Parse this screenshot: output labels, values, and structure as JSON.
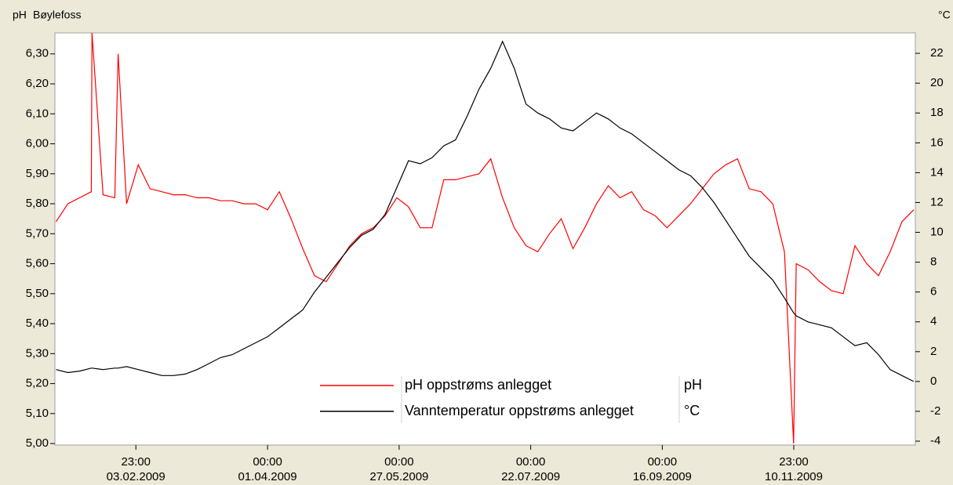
{
  "chart_data": {
    "type": "line",
    "title": "Bøylefoss",
    "ylabel": "pH",
    "y2label": "°C",
    "x": [
      0,
      5,
      10,
      15,
      15.3,
      20,
      25,
      26.4,
      30,
      35,
      40,
      45,
      50,
      55,
      60,
      65,
      70,
      75,
      80,
      85,
      90,
      95,
      100,
      105,
      110,
      115,
      120,
      125,
      130,
      135,
      140,
      145,
      150,
      155,
      160,
      165,
      170,
      175,
      180,
      185,
      190,
      195,
      200,
      205,
      210,
      215,
      220,
      225,
      230,
      235,
      240,
      245,
      250,
      255,
      260,
      265,
      270,
      275,
      280,
      285,
      290,
      295,
      300,
      305,
      310,
      313.9,
      315,
      320,
      325,
      330,
      335,
      340,
      345,
      350,
      355,
      360,
      365
    ],
    "series": [
      {
        "name": "pH oppstrøms anlegget",
        "unit": "pH",
        "color": "#ff0000",
        "values": [
          5.74,
          5.8,
          5.82,
          5.84,
          6.37,
          5.83,
          5.82,
          6.3,
          5.8,
          5.93,
          5.85,
          5.84,
          5.83,
          5.83,
          5.82,
          5.82,
          5.81,
          5.81,
          5.8,
          5.8,
          5.78,
          5.84,
          5.75,
          5.65,
          5.56,
          5.54,
          5.6,
          5.66,
          5.7,
          5.72,
          5.76,
          5.82,
          5.79,
          5.72,
          5.72,
          5.88,
          5.88,
          5.89,
          5.9,
          5.95,
          5.82,
          5.72,
          5.66,
          5.64,
          5.7,
          5.75,
          5.65,
          5.72,
          5.8,
          5.86,
          5.82,
          5.84,
          5.78,
          5.76,
          5.72,
          5.76,
          5.8,
          5.85,
          5.9,
          5.93,
          5.95,
          5.85,
          5.84,
          5.8,
          5.64,
          5.0,
          5.6,
          5.58,
          5.54,
          5.51,
          5.5,
          5.66,
          5.6,
          5.56,
          5.64,
          5.74,
          5.78
        ]
      },
      {
        "name": "Vanntemperatur oppstrøms anlegget",
        "unit": "°C",
        "color": "#000000",
        "axis": "y2",
        "values": [
          0.8,
          0.6,
          0.7,
          0.9,
          0.9,
          0.8,
          0.9,
          0.9,
          1.0,
          0.8,
          0.6,
          0.4,
          0.4,
          0.5,
          0.8,
          1.2,
          1.6,
          1.8,
          2.2,
          2.6,
          3.0,
          3.6,
          4.2,
          4.8,
          6.0,
          7.0,
          8.0,
          9.0,
          9.8,
          10.2,
          11.2,
          13.0,
          14.8,
          14.6,
          15.0,
          15.8,
          16.2,
          17.8,
          19.6,
          21.0,
          22.8,
          21.0,
          18.6,
          18.0,
          17.6,
          17.0,
          16.8,
          17.4,
          18.0,
          17.6,
          17.0,
          16.6,
          16.0,
          15.4,
          14.8,
          14.2,
          13.8,
          13.0,
          12.0,
          10.8,
          9.6,
          8.4,
          7.6,
          6.8,
          5.6,
          4.6,
          4.4,
          4.0,
          3.8,
          3.6,
          3.0,
          2.4,
          2.6,
          1.8,
          0.8,
          0.4,
          0.0
        ]
      }
    ],
    "xlim": [
      -0.5,
      365.7
    ],
    "xticks": [
      {
        "value": 33.958,
        "label": "23:00\n03.02.2009"
      },
      {
        "value": 90,
        "label": "00:00\n01.04.2009"
      },
      {
        "value": 146,
        "label": "00:00\n27.05.2009"
      },
      {
        "value": 202,
        "label": "00:00\n22.07.2009"
      },
      {
        "value": 258,
        "label": "00:00\n16.09.2009"
      },
      {
        "value": 313.958,
        "label": "23:00\n10.11.2009"
      }
    ],
    "ylim": [
      4.995,
      6.37
    ],
    "yticks": [
      {
        "value": 5.0,
        "label": "5,00"
      },
      {
        "value": 5.1,
        "label": "5,10"
      },
      {
        "value": 5.2,
        "label": "5,20"
      },
      {
        "value": 5.3,
        "label": "5,30"
      },
      {
        "value": 5.4,
        "label": "5,40"
      },
      {
        "value": 5.5,
        "label": "5,50"
      },
      {
        "value": 5.6,
        "label": "5,60"
      },
      {
        "value": 5.7,
        "label": "5,70"
      },
      {
        "value": 5.8,
        "label": "5,80"
      },
      {
        "value": 5.9,
        "label": "5,90"
      },
      {
        "value": 6.0,
        "label": "6,00"
      },
      {
        "value": 6.1,
        "label": "6,10"
      },
      {
        "value": 6.2,
        "label": "6,20"
      },
      {
        "value": 6.3,
        "label": "6,30"
      }
    ],
    "y2lim": [
      -4.26,
      23.37
    ],
    "y2ticks": [
      -4,
      -2,
      0,
      2,
      4,
      6,
      8,
      10,
      12,
      14,
      16,
      18,
      20,
      22
    ]
  }
}
